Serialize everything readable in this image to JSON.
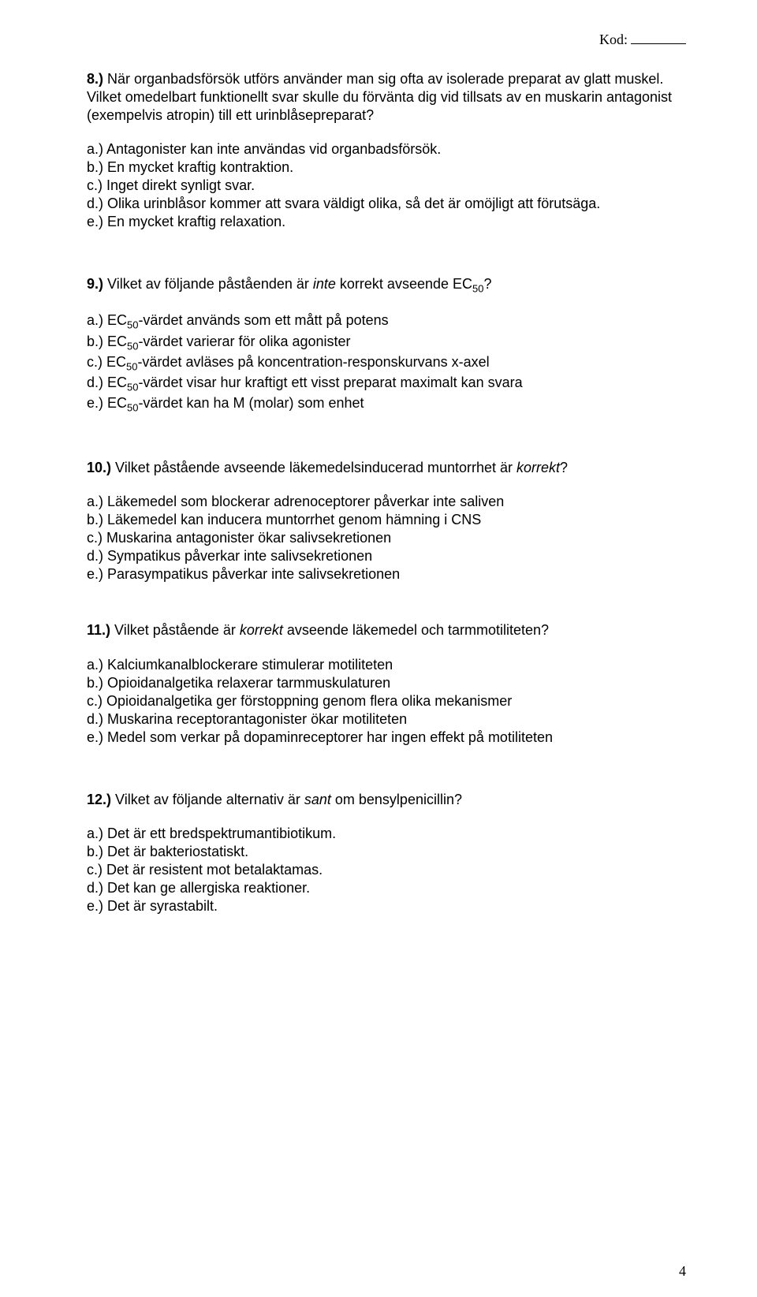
{
  "header": {
    "kod_label": "Kod:"
  },
  "q8": {
    "number": "8.)",
    "text": "När organbadsförsök utförs använder man sig ofta av isolerade preparat av glatt muskel. Vilket omedelbart funktionellt svar skulle du förvänta dig vid tillsats av en muskarin antagonist (exempelvis atropin) till ett urinblåsepreparat?",
    "a": "a.) Antagonister kan inte användas vid organbadsförsök.",
    "b": "b.) En mycket kraftig kontraktion.",
    "c": "c.) Inget direkt synligt svar.",
    "d": "d.) Olika urinblåsor kommer att svara väldigt olika, så det är omöjligt att förutsäga.",
    "e": "e.) En mycket kraftig relaxation."
  },
  "q9": {
    "number": "9.)",
    "text_pre": "Vilket av följande påståenden är ",
    "text_italic": "inte",
    "text_post": " korrekt avseende EC",
    "text_sub": "50",
    "text_end": "?",
    "a_pre": "a.) EC",
    "a_sub": "50",
    "a_post": "-värdet används som ett mått på potens",
    "b_pre": "b.) EC",
    "b_sub": "50",
    "b_post": "-värdet varierar för olika agonister",
    "c_pre": "c.) EC",
    "c_sub": "50",
    "c_post": "-värdet avläses på koncentration-responskurvans x-axel",
    "d_pre": "d.) EC",
    "d_sub": "50",
    "d_post": "-värdet visar hur kraftigt ett visst preparat maximalt kan svara",
    "e_pre": "e.) EC",
    "e_sub": "50",
    "e_post": "-värdet kan ha M (molar) som enhet"
  },
  "q10": {
    "number": "10.)",
    "text_pre": "Vilket påstående avseende läkemedelsinducerad muntorrhet är ",
    "text_italic": "korrekt",
    "text_post": "?",
    "a": "a.) Läkemedel som blockerar adrenoceptorer påverkar inte saliven",
    "b": "b.) Läkemedel kan inducera muntorrhet genom hämning i CNS",
    "c": "c.) Muskarina antagonister ökar salivsekretionen",
    "d": "d.) Sympatikus påverkar inte salivsekretionen",
    "e": "e.) Parasympatikus påverkar inte salivsekretionen"
  },
  "q11": {
    "number": "11.)",
    "text_pre": "Vilket påstående är ",
    "text_italic": "korrekt",
    "text_post": " avseende läkemedel och tarmmotiliteten?",
    "a": "a.) Kalciumkanalblockerare stimulerar motiliteten",
    "b": "b.) Opioidanalgetika relaxerar tarmmuskulaturen",
    "c": "c.) Opioidanalgetika ger förstoppning genom flera olika mekanismer",
    "d": "d.) Muskarina receptorantagonister ökar motiliteten",
    "e": "e.) Medel som verkar på dopaminreceptorer har ingen effekt på motiliteten"
  },
  "q12": {
    "number": "12.)",
    "text_pre": "Vilket av följande alternativ är ",
    "text_italic": "sant",
    "text_post": " om bensylpenicillin?",
    "a": "a.) Det är ett bredspektrumantibiotikum.",
    "b": "b.) Det är bakteriostatiskt.",
    "c": "c.) Det är resistent mot betalaktamas.",
    "d": "d.) Det kan ge allergiska reaktioner.",
    "e": "e.) Det är syrastabilt."
  },
  "page_number": "4"
}
